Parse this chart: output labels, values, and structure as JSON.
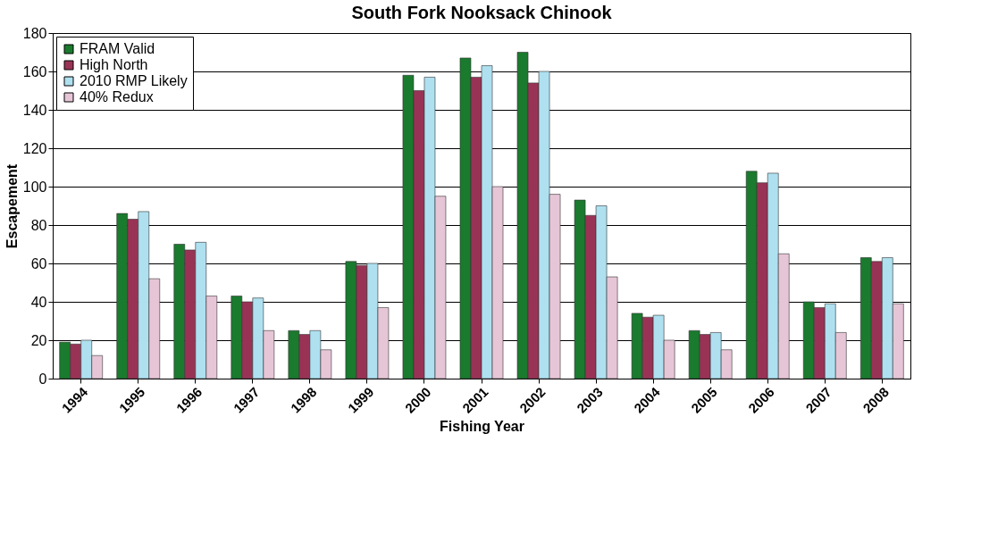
{
  "chart_data": {
    "type": "bar",
    "title": "South Fork Nooksack Chinook",
    "xlabel": "Fishing Year",
    "ylabel": "Escapement",
    "categories": [
      "1994",
      "1995",
      "1996",
      "1997",
      "1998",
      "1999",
      "2000",
      "2001",
      "2002",
      "2003",
      "2004",
      "2005",
      "2006",
      "2007",
      "2008"
    ],
    "series": [
      {
        "name": "FRAM Valid",
        "color": "#1a7a2e",
        "values": [
          19,
          86,
          70,
          43,
          25,
          61,
          158,
          167,
          170,
          93,
          34,
          25,
          108,
          40,
          63
        ]
      },
      {
        "name": "High North",
        "color": "#993355",
        "values": [
          18,
          83,
          67,
          40,
          23,
          59,
          150,
          157,
          154,
          85,
          32,
          23,
          102,
          37,
          61
        ]
      },
      {
        "name": "2010 RMP Likely",
        "color": "#aee0f0",
        "values": [
          20,
          87,
          71,
          42,
          25,
          60,
          157,
          163,
          160,
          90,
          33,
          24,
          107,
          39,
          63
        ]
      },
      {
        "name": "40% Redux",
        "color": "#e6c6d6",
        "values": [
          12,
          52,
          43,
          25,
          15,
          37,
          95,
          100,
          96,
          53,
          20,
          15,
          65,
          24,
          39
        ]
      }
    ],
    "ylim": [
      0,
      180
    ],
    "yticks": [
      0,
      20,
      40,
      60,
      80,
      100,
      120,
      140,
      160,
      180
    ],
    "grid": "y",
    "legend": "top left"
  }
}
